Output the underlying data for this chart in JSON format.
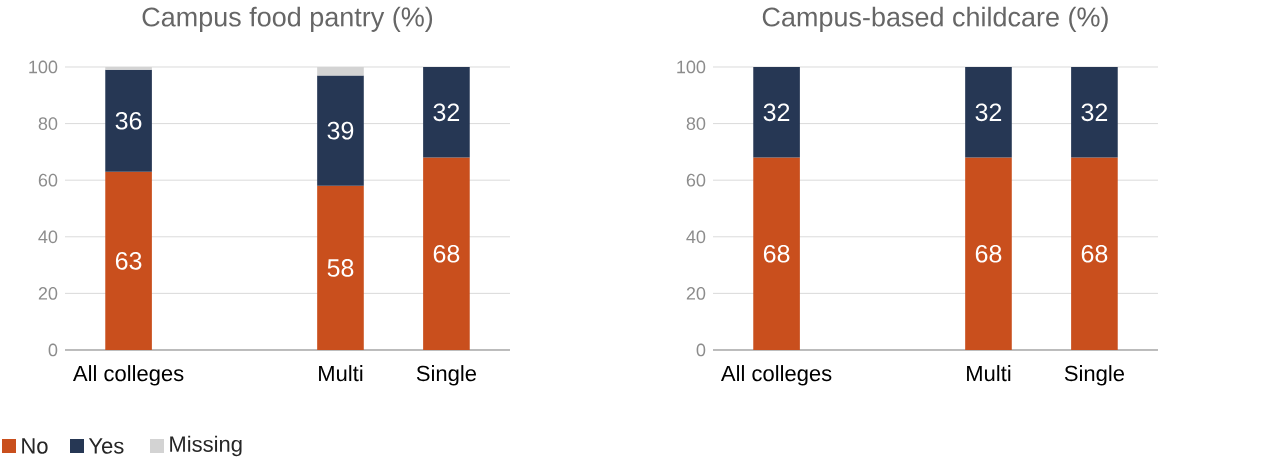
{
  "chart_data": [
    {
      "type": "bar",
      "title": "Campus food pantry (%)",
      "stacked": true,
      "categories": [
        "All colleges",
        null,
        "Multi",
        "Single"
      ],
      "ylim": [
        0,
        100
      ],
      "yticks": [
        0,
        20,
        40,
        60,
        80,
        100
      ],
      "grid": "y",
      "legend": "bottom left",
      "series": [
        {
          "name": "No",
          "color": "#c94f1d",
          "values": [
            63,
            null,
            58,
            68
          ],
          "value_labels": [
            "63",
            null,
            "58",
            "68"
          ]
        },
        {
          "name": "Yes",
          "color": "#263754",
          "values": [
            36,
            null,
            39,
            32
          ],
          "value_labels": [
            "36",
            null,
            "39",
            "32"
          ]
        },
        {
          "name": "Missing",
          "color": "#d3d3d3",
          "values": [
            1,
            null,
            3,
            0
          ]
        }
      ]
    },
    {
      "type": "bar",
      "title": "Campus-based childcare (%)",
      "stacked": true,
      "categories": [
        "All colleges",
        null,
        "Multi",
        "Single"
      ],
      "ylim": [
        0,
        100
      ],
      "yticks": [
        0,
        20,
        40,
        60,
        80,
        100
      ],
      "grid": "y",
      "series": [
        {
          "color": "#c94f1d",
          "values": [
            68,
            null,
            68,
            68
          ],
          "value_labels": [
            "68",
            null,
            "68",
            "68"
          ]
        },
        {
          "color": "#263754",
          "values": [
            32,
            null,
            32,
            32
          ],
          "value_labels": [
            "32",
            null,
            "32",
            "32"
          ]
        }
      ]
    }
  ]
}
